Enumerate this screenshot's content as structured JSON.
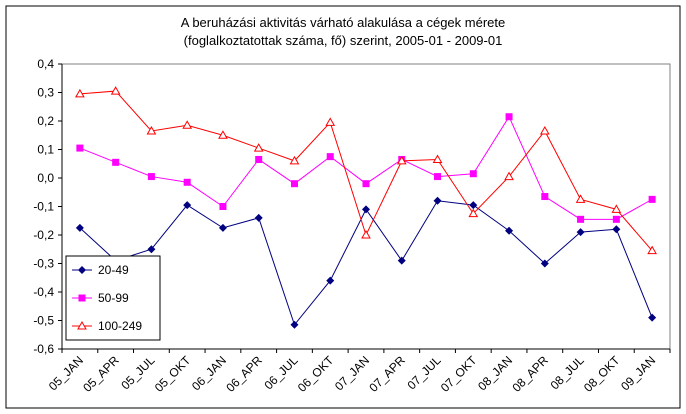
{
  "chart_data": {
    "type": "line",
    "title": [
      "A beruházási aktivitás várható alakulása a cégek mérete",
      "(foglalkoztatottak száma, fő) szerint, 2005-01 - 2009-01"
    ],
    "categories": [
      "05_JAN",
      "05_APR",
      "05_JUL",
      "05_OKT",
      "06_JAN",
      "06_APR",
      "06_JUL",
      "06_OKT",
      "07_JAN",
      "07_APR",
      "07_JUL",
      "07_OKT",
      "08_JAN",
      "08_APR",
      "08_JUL",
      "08_OKT",
      "09_JAN"
    ],
    "series": [
      {
        "name": "20-49",
        "color": "#000080",
        "marker": "diamond",
        "values": [
          -0.175,
          -0.29,
          -0.25,
          -0.095,
          -0.175,
          -0.14,
          -0.515,
          -0.36,
          -0.11,
          -0.29,
          -0.08,
          -0.095,
          -0.185,
          -0.3,
          -0.19,
          -0.18,
          -0.49
        ]
      },
      {
        "name": "50-99",
        "color": "#ff00ff",
        "marker": "square",
        "values": [
          0.105,
          0.055,
          0.005,
          -0.015,
          -0.1,
          0.065,
          -0.02,
          0.075,
          -0.02,
          0.065,
          0.005,
          0.015,
          0.215,
          -0.065,
          -0.145,
          -0.145,
          -0.075
        ]
      },
      {
        "name": "100-249",
        "color": "#ff0000",
        "marker": "triangle",
        "values": [
          0.295,
          0.305,
          0.165,
          0.185,
          0.15,
          0.105,
          0.06,
          0.195,
          -0.2,
          0.06,
          0.065,
          -0.125,
          0.005,
          0.165,
          -0.075,
          -0.11,
          -0.255
        ]
      }
    ],
    "ylim": [
      -0.6,
      0.4
    ],
    "yticks": [
      {
        "value": -0.6,
        "label": "-0,6"
      },
      {
        "value": -0.5,
        "label": "-0,5"
      },
      {
        "value": -0.4,
        "label": "-0,4"
      },
      {
        "value": -0.3,
        "label": "-0,3"
      },
      {
        "value": -0.2,
        "label": "-0,2"
      },
      {
        "value": -0.1,
        "label": "-0,1"
      },
      {
        "value": 0,
        "label": "0,0"
      },
      {
        "value": 0.1,
        "label": "0,1"
      },
      {
        "value": 0.2,
        "label": "0,2"
      },
      {
        "value": 0.3,
        "label": "0,3"
      },
      {
        "value": 0.4,
        "label": "0,4"
      }
    ],
    "grid": false,
    "legend": "lower left"
  }
}
